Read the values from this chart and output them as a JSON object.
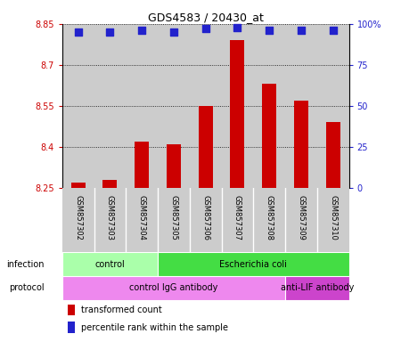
{
  "title": "GDS4583 / 20430_at",
  "samples": [
    "GSM857302",
    "GSM857303",
    "GSM857304",
    "GSM857305",
    "GSM857306",
    "GSM857307",
    "GSM857308",
    "GSM857309",
    "GSM857310"
  ],
  "transformed_counts": [
    8.27,
    8.28,
    8.42,
    8.41,
    8.55,
    8.79,
    8.63,
    8.57,
    8.49
  ],
  "percentile_ranks": [
    95,
    95,
    96,
    95,
    97,
    98,
    96,
    96,
    96
  ],
  "ylim_left": [
    8.25,
    8.85
  ],
  "ylim_right": [
    0,
    100
  ],
  "yticks_left": [
    8.25,
    8.4,
    8.55,
    8.7,
    8.85
  ],
  "yticks_right": [
    0,
    25,
    50,
    75,
    100
  ],
  "bar_color": "#cc0000",
  "dot_color": "#2222cc",
  "infection_groups": [
    {
      "label": "control",
      "start": 0,
      "end": 3,
      "color": "#aaeea a"
    },
    {
      "label": "Escherichia coli",
      "start": 3,
      "end": 9,
      "color": "#44dd44"
    }
  ],
  "protocol_groups": [
    {
      "label": "control IgG antibody",
      "start": 0,
      "end": 7,
      "color": "#ee88ee"
    },
    {
      "label": "anti-LIF antibody",
      "start": 7,
      "end": 9,
      "color": "#cc44cc"
    }
  ],
  "infection_label": "infection",
  "protocol_label": "protocol",
  "legend_red_label": "transformed count",
  "legend_blue_label": "percentile rank within the sample",
  "bar_width": 0.45,
  "dot_size": 30,
  "gray_bg": "#cccccc",
  "tick_color_left": "#cc0000",
  "tick_color_right": "#2222cc",
  "infection_light_color": "#aaffaa",
  "infection_dark_color": "#44dd44",
  "protocol_light_color": "#ee88ee",
  "protocol_dark_color": "#cc44cc"
}
